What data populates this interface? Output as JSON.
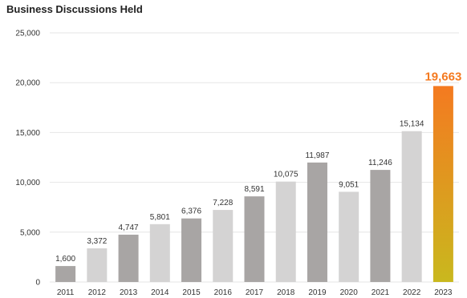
{
  "chart_data": {
    "type": "bar",
    "title": "Business Discussions Held",
    "categories": [
      "2011",
      "2012",
      "2013",
      "2014",
      "2015",
      "2016",
      "2017",
      "2018",
      "2019",
      "2020",
      "2021",
      "2022",
      "2023"
    ],
    "values": [
      1600,
      3372,
      4747,
      5801,
      6376,
      7228,
      8591,
      10075,
      11987,
      9051,
      11246,
      15134,
      19663
    ],
    "value_labels": [
      "1,600",
      "3,372",
      "4,747",
      "5,801",
      "6,376",
      "7,228",
      "8,591",
      "10,075",
      "11,987",
      "9,051",
      "11,246",
      "15,134",
      "19,663"
    ],
    "ylim": [
      0,
      25000
    ],
    "yticks": [
      0,
      5000,
      10000,
      15000,
      20000,
      25000
    ],
    "ytick_labels": [
      "0",
      "5,000",
      "10,000",
      "15,000",
      "20,000",
      "25,000"
    ],
    "grid": true,
    "legend": "none",
    "colors": {
      "dark_bar": "#a8a5a4",
      "light_bar": "#d4d3d3",
      "highlight_top": "#f47a20",
      "highlight_bottom": "#c9b81e",
      "highlight_label": "#f47a20",
      "grid": "#e6e6e6"
    },
    "bar_shades": [
      "dark",
      "light",
      "dark",
      "light",
      "dark",
      "light",
      "dark",
      "light",
      "dark",
      "light",
      "dark",
      "light",
      "highlight"
    ]
  }
}
